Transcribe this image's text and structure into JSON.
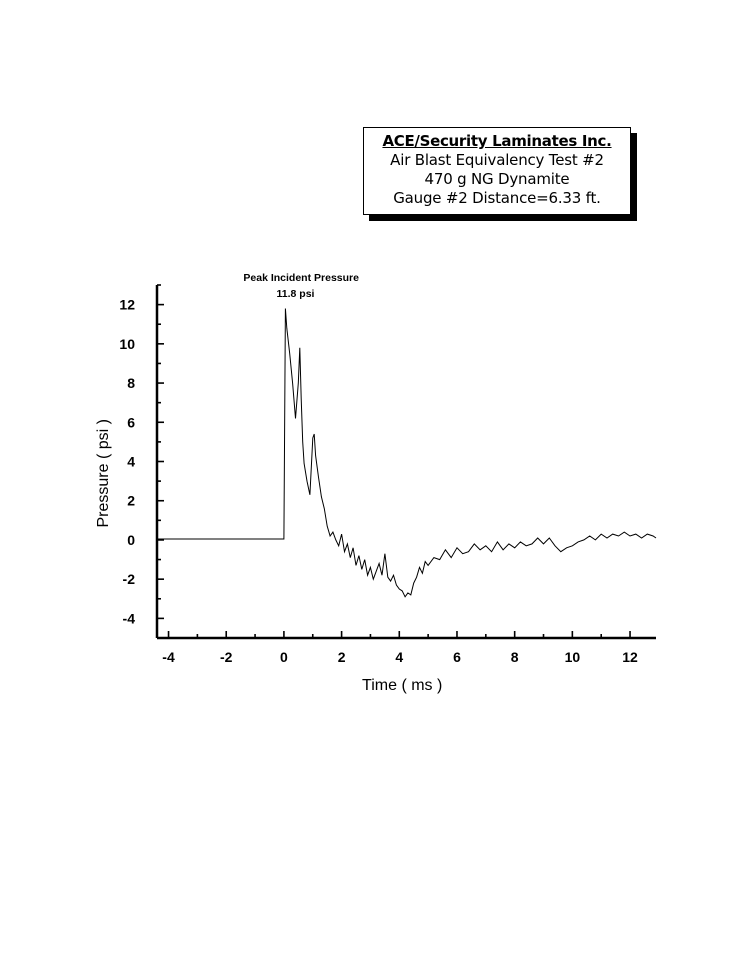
{
  "header": {
    "company": "ACE/Security Laminates Inc.",
    "test": "Air Blast Equivalency Test #2",
    "charge": "470 g NG Dynamite",
    "gauge": "Gauge #2 Distance=6.33 ft."
  },
  "chart_data": {
    "type": "line",
    "title": "",
    "xlabel": "Time ( ms )",
    "ylabel": "Pressure ( psi )",
    "xlim": [
      -4.4,
      12.9
    ],
    "ylim": [
      -5,
      13
    ],
    "xticks": [
      -4,
      -2,
      0,
      2,
      4,
      6,
      8,
      10,
      12
    ],
    "yticks": [
      -4,
      -2,
      0,
      2,
      4,
      6,
      8,
      10,
      12
    ],
    "grid": false,
    "legend": "none",
    "annotations": [
      {
        "text": "Peak Incident Pressure",
        "x": 0.6,
        "y": 13.2
      },
      {
        "text": "11.8 psi",
        "x": 0.4,
        "y": 12.4
      }
    ],
    "series": [
      {
        "x": [
          -4.4,
          -3.0,
          -1.0,
          0.0,
          0.05,
          0.1,
          0.2,
          0.3,
          0.4,
          0.5,
          0.55,
          0.6,
          0.65,
          0.7,
          0.8,
          0.9,
          1.0,
          1.05,
          1.1,
          1.2,
          1.3,
          1.4,
          1.5,
          1.6,
          1.7,
          1.8,
          1.9,
          2.0,
          2.1,
          2.2,
          2.3,
          2.4,
          2.5,
          2.6,
          2.7,
          2.8,
          2.9,
          3.0,
          3.1,
          3.2,
          3.3,
          3.4,
          3.5,
          3.6,
          3.7,
          3.8,
          3.9,
          4.0,
          4.1,
          4.2,
          4.3,
          4.4,
          4.5,
          4.6,
          4.7,
          4.8,
          4.9,
          5.0,
          5.2,
          5.4,
          5.6,
          5.8,
          6.0,
          6.2,
          6.4,
          6.6,
          6.8,
          7.0,
          7.2,
          7.4,
          7.6,
          7.8,
          8.0,
          8.2,
          8.4,
          8.6,
          8.8,
          9.0,
          9.2,
          9.4,
          9.6,
          9.8,
          10.0,
          10.2,
          10.4,
          10.6,
          10.8,
          11.0,
          11.2,
          11.4,
          11.6,
          11.8,
          12.0,
          12.2,
          12.4,
          12.6,
          12.8,
          12.9
        ],
        "y": [
          0.05,
          0.05,
          0.05,
          0.05,
          11.8,
          10.8,
          9.5,
          8.0,
          6.2,
          8.0,
          9.8,
          7.2,
          5.0,
          3.9,
          3.0,
          2.3,
          5.2,
          5.4,
          4.3,
          3.2,
          2.2,
          1.6,
          0.7,
          0.2,
          0.4,
          0.0,
          -0.3,
          0.3,
          -0.6,
          -0.2,
          -0.9,
          -0.4,
          -1.3,
          -0.8,
          -1.5,
          -1.0,
          -1.8,
          -1.4,
          -2.0,
          -1.6,
          -1.2,
          -1.8,
          -0.7,
          -1.9,
          -2.1,
          -1.8,
          -2.3,
          -2.5,
          -2.6,
          -2.9,
          -2.7,
          -2.8,
          -2.2,
          -1.9,
          -1.4,
          -1.7,
          -1.1,
          -1.3,
          -0.9,
          -1.0,
          -0.5,
          -0.9,
          -0.4,
          -0.7,
          -0.6,
          -0.2,
          -0.5,
          -0.3,
          -0.6,
          -0.1,
          -0.5,
          -0.2,
          -0.4,
          -0.1,
          -0.3,
          -0.2,
          0.1,
          -0.2,
          0.1,
          -0.3,
          -0.6,
          -0.4,
          -0.3,
          -0.1,
          0.0,
          0.2,
          0.0,
          0.3,
          0.1,
          0.3,
          0.2,
          0.4,
          0.2,
          0.3,
          0.1,
          0.3,
          0.2,
          0.1
        ]
      }
    ]
  }
}
